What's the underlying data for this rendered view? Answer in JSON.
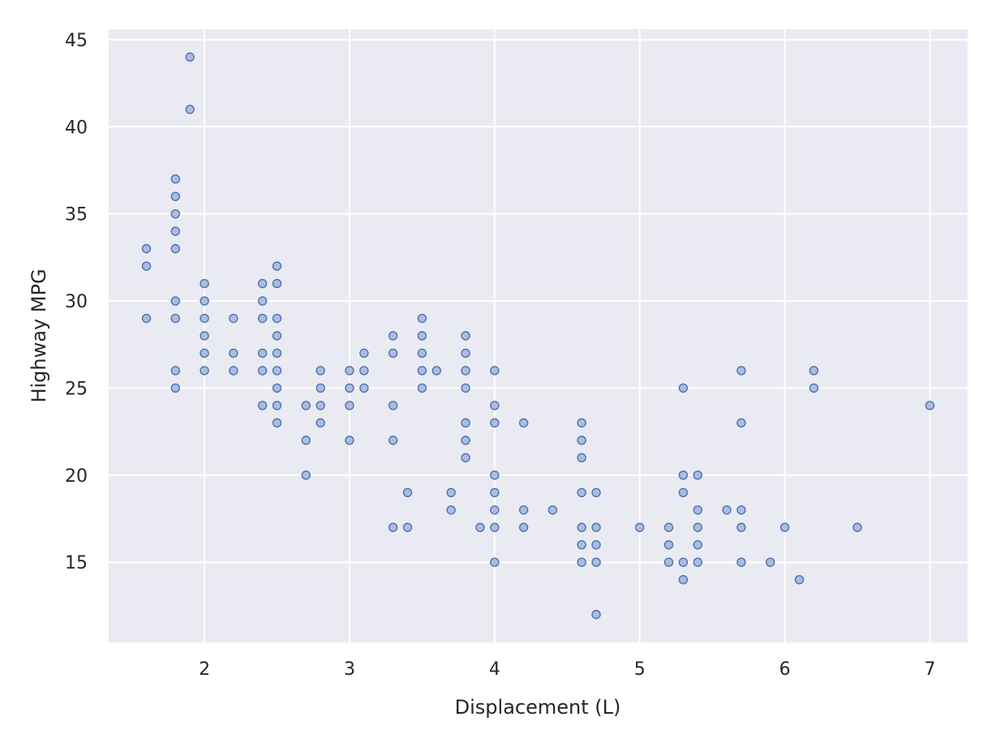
{
  "chart_data": {
    "type": "scatter",
    "title": "",
    "xlabel": "Displacement (L)",
    "ylabel": "Highway MPG",
    "xlim": [
      1.34,
      7.26
    ],
    "ylim": [
      10.4,
      45.6
    ],
    "xticks": [
      2,
      3,
      4,
      5,
      6,
      7
    ],
    "yticks": [
      15,
      20,
      25,
      30,
      35,
      40,
      45
    ],
    "grid": true,
    "colors": {
      "background": "#eaeaf2",
      "grid": "#ffffff",
      "marker_edge": "#4c72b0",
      "marker_fill": "#a4b8db"
    },
    "points": [
      [
        1.6,
        33
      ],
      [
        1.6,
        32
      ],
      [
        1.6,
        29
      ],
      [
        1.8,
        37
      ],
      [
        1.8,
        36
      ],
      [
        1.8,
        35
      ],
      [
        1.8,
        34
      ],
      [
        1.8,
        33
      ],
      [
        1.8,
        30
      ],
      [
        1.8,
        29
      ],
      [
        1.8,
        26
      ],
      [
        1.8,
        25
      ],
      [
        1.9,
        44
      ],
      [
        1.9,
        41
      ],
      [
        2.0,
        31
      ],
      [
        2.0,
        30
      ],
      [
        2.0,
        29
      ],
      [
        2.0,
        28
      ],
      [
        2.0,
        27
      ],
      [
        2.0,
        26
      ],
      [
        2.2,
        29
      ],
      [
        2.2,
        27
      ],
      [
        2.2,
        26
      ],
      [
        2.4,
        31
      ],
      [
        2.4,
        30
      ],
      [
        2.4,
        29
      ],
      [
        2.4,
        27
      ],
      [
        2.4,
        26
      ],
      [
        2.4,
        24
      ],
      [
        2.5,
        32
      ],
      [
        2.5,
        31
      ],
      [
        2.5,
        29
      ],
      [
        2.5,
        28
      ],
      [
        2.5,
        27
      ],
      [
        2.5,
        26
      ],
      [
        2.5,
        25
      ],
      [
        2.5,
        24
      ],
      [
        2.5,
        23
      ],
      [
        2.7,
        24
      ],
      [
        2.7,
        22
      ],
      [
        2.7,
        20
      ],
      [
        2.8,
        26
      ],
      [
        2.8,
        25
      ],
      [
        2.8,
        24
      ],
      [
        2.8,
        23
      ],
      [
        3.0,
        26
      ],
      [
        3.0,
        25
      ],
      [
        3.0,
        24
      ],
      [
        3.0,
        22
      ],
      [
        3.1,
        27
      ],
      [
        3.1,
        26
      ],
      [
        3.1,
        25
      ],
      [
        3.3,
        28
      ],
      [
        3.3,
        27
      ],
      [
        3.3,
        24
      ],
      [
        3.3,
        22
      ],
      [
        3.3,
        17
      ],
      [
        3.4,
        19
      ],
      [
        3.4,
        17
      ],
      [
        3.5,
        29
      ],
      [
        3.5,
        28
      ],
      [
        3.5,
        27
      ],
      [
        3.5,
        26
      ],
      [
        3.5,
        25
      ],
      [
        3.6,
        26
      ],
      [
        3.7,
        19
      ],
      [
        3.7,
        18
      ],
      [
        3.8,
        28
      ],
      [
        3.8,
        27
      ],
      [
        3.8,
        26
      ],
      [
        3.8,
        25
      ],
      [
        3.8,
        23
      ],
      [
        3.8,
        22
      ],
      [
        3.8,
        21
      ],
      [
        3.9,
        17
      ],
      [
        4.0,
        26
      ],
      [
        4.0,
        24
      ],
      [
        4.0,
        23
      ],
      [
        4.0,
        20
      ],
      [
        4.0,
        19
      ],
      [
        4.0,
        18
      ],
      [
        4.0,
        17
      ],
      [
        4.0,
        15
      ],
      [
        4.2,
        23
      ],
      [
        4.2,
        18
      ],
      [
        4.2,
        17
      ],
      [
        4.4,
        18
      ],
      [
        4.6,
        23
      ],
      [
        4.6,
        22
      ],
      [
        4.6,
        21
      ],
      [
        4.6,
        19
      ],
      [
        4.6,
        17
      ],
      [
        4.6,
        16
      ],
      [
        4.6,
        15
      ],
      [
        4.7,
        19
      ],
      [
        4.7,
        17
      ],
      [
        4.7,
        16
      ],
      [
        4.7,
        15
      ],
      [
        4.7,
        12
      ],
      [
        5.0,
        17
      ],
      [
        5.2,
        17
      ],
      [
        5.2,
        16
      ],
      [
        5.2,
        15
      ],
      [
        5.3,
        25
      ],
      [
        5.3,
        20
      ],
      [
        5.3,
        19
      ],
      [
        5.3,
        15
      ],
      [
        5.3,
        14
      ],
      [
        5.4,
        20
      ],
      [
        5.4,
        18
      ],
      [
        5.4,
        17
      ],
      [
        5.4,
        16
      ],
      [
        5.4,
        15
      ],
      [
        5.6,
        18
      ],
      [
        5.7,
        26
      ],
      [
        5.7,
        23
      ],
      [
        5.7,
        18
      ],
      [
        5.7,
        17
      ],
      [
        5.7,
        15
      ],
      [
        5.9,
        15
      ],
      [
        6.0,
        17
      ],
      [
        6.1,
        14
      ],
      [
        6.2,
        26
      ],
      [
        6.2,
        25
      ],
      [
        6.5,
        17
      ],
      [
        7.0,
        24
      ]
    ]
  }
}
